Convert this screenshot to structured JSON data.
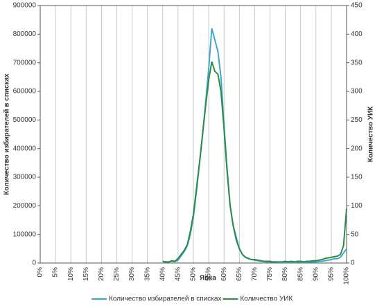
{
  "chart_data": {
    "type": "line",
    "x_label": "Явка",
    "y_label": "Количество избирателей в списках",
    "y2_label": "Количество УИК",
    "x": [
      40,
      41,
      42,
      43,
      44,
      45,
      46,
      47,
      48,
      49,
      50,
      51,
      52,
      53,
      54,
      55,
      56,
      57,
      58,
      59,
      60,
      61,
      62,
      63,
      64,
      65,
      66,
      67,
      68,
      69,
      70,
      71,
      72,
      73,
      74,
      75,
      76,
      77,
      78,
      79,
      80,
      81,
      82,
      83,
      84,
      85,
      86,
      87,
      88,
      89,
      90,
      91,
      92,
      93,
      94,
      95,
      96,
      97,
      98,
      99,
      100
    ],
    "series": [
      {
        "name": "Количество избирателей в списках",
        "color": "#3fa6cc",
        "values": [
          5000,
          3000,
          4000,
          6000,
          5000,
          10000,
          25000,
          40000,
          60000,
          100000,
          160000,
          250000,
          350000,
          450000,
          560000,
          680000,
          820000,
          780000,
          740000,
          650000,
          480000,
          330000,
          200000,
          130000,
          90000,
          50000,
          30000,
          20000,
          15000,
          12000,
          10000,
          8000,
          6000,
          5000,
          4000,
          4000,
          3000,
          3000,
          2000,
          2000,
          3000,
          2000,
          3000,
          2000,
          3000,
          3000,
          2000,
          3000,
          3000,
          4000,
          4000,
          5000,
          6000,
          8000,
          10000,
          12000,
          15000,
          15000,
          20000,
          35000,
          50000
        ]
      },
      {
        "name": "Количество УИК",
        "color": "#2e8b4a",
        "axis": "y2",
        "values": [
          3,
          2,
          2,
          4,
          3,
          8,
          15,
          22,
          32,
          55,
          85,
          130,
          175,
          225,
          275,
          320,
          352,
          335,
          330,
          300,
          235,
          160,
          100,
          65,
          40,
          25,
          15,
          10,
          8,
          6,
          6,
          5,
          4,
          3,
          3,
          3,
          2,
          2,
          2,
          2,
          3,
          2,
          3,
          2,
          3,
          3,
          2,
          3,
          3,
          4,
          4,
          5,
          6,
          8,
          9,
          10,
          11,
          12,
          15,
          30,
          95
        ]
      }
    ],
    "xlim": [
      0,
      100
    ],
    "xticks": [
      {
        "value": 0,
        "label": "0%"
      },
      {
        "value": 5,
        "label": "5%"
      },
      {
        "value": 10,
        "label": "10%"
      },
      {
        "value": 15,
        "label": "15%"
      },
      {
        "value": 20,
        "label": "20%"
      },
      {
        "value": 25,
        "label": "25%"
      },
      {
        "value": 30,
        "label": "30%"
      },
      {
        "value": 35,
        "label": "35%"
      },
      {
        "value": 40,
        "label": "40%"
      },
      {
        "value": 45,
        "label": "45%"
      },
      {
        "value": 50,
        "label": "50%"
      },
      {
        "value": 55,
        "label": "55%"
      },
      {
        "value": 60,
        "label": "60%"
      },
      {
        "value": 65,
        "label": "65%"
      },
      {
        "value": 70,
        "label": "70%"
      },
      {
        "value": 75,
        "label": "75%"
      },
      {
        "value": 80,
        "label": "80%"
      },
      {
        "value": 85,
        "label": "85%"
      },
      {
        "value": 90,
        "label": "90%"
      },
      {
        "value": 95,
        "label": "95%"
      },
      {
        "value": 100,
        "label": "100%"
      }
    ],
    "ylim": [
      0,
      900000
    ],
    "yticks": [
      0,
      100000,
      200000,
      300000,
      400000,
      500000,
      600000,
      700000,
      800000,
      900000
    ],
    "y2lim": [
      0,
      450
    ],
    "y2ticks": [
      0,
      50,
      100,
      150,
      200,
      250,
      300,
      350,
      400,
      450
    ],
    "grid": true
  }
}
